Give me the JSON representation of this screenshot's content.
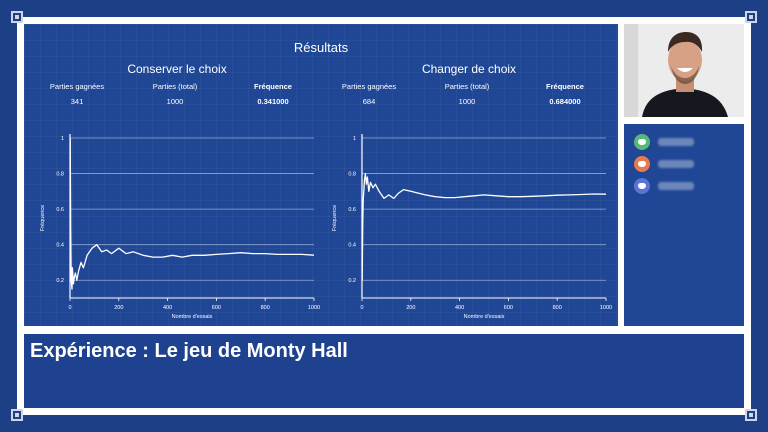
{
  "overlay": {
    "results_title": "Résultats",
    "caption": "Expérience : Le jeu de Monty Hall"
  },
  "colors": {
    "background": "#1d3f86",
    "screen": "#1f4796",
    "frame": "#ffffff",
    "avatar_1": "#57b87a",
    "avatar_2": "#e8794f",
    "avatar_3": "#5b73d6"
  },
  "participants": [
    {
      "icon": "discord-icon"
    },
    {
      "icon": "discord-icon"
    },
    {
      "icon": "discord-icon"
    }
  ],
  "panels": [
    {
      "title": "Conserver le choix",
      "stats": [
        {
          "label": "Parties gagnées",
          "value": "341"
        },
        {
          "label": "Parties (total)",
          "value": "1000"
        },
        {
          "label": "Fréquence",
          "value": "0.341000"
        }
      ]
    },
    {
      "title": "Changer de choix",
      "stats": [
        {
          "label": "Parties gagnées",
          "value": "684"
        },
        {
          "label": "Parties (total)",
          "value": "1000"
        },
        {
          "label": "Fréquence",
          "value": "0.684000"
        }
      ]
    }
  ],
  "chart_data": [
    {
      "type": "line",
      "title": "Conserver le choix",
      "xlabel": "Nombre d'essais",
      "ylabel": "Fréquence",
      "xlim": [
        0,
        1000
      ],
      "ylim": [
        0.1,
        1
      ],
      "xticks": [
        "0",
        "200",
        "400",
        "600",
        "800",
        "1000"
      ],
      "yticks": [
        "0.2",
        "0.4",
        "0.6",
        "0.8",
        "1"
      ],
      "grid": "horizontal",
      "series": [
        {
          "x": [
            1,
            3,
            5,
            8,
            10,
            14,
            18,
            22,
            28,
            35,
            45,
            55,
            70,
            90,
            110,
            130,
            150,
            170,
            200,
            230,
            260,
            300,
            340,
            380,
            420,
            460,
            500,
            550,
            600,
            650,
            700,
            750,
            800,
            850,
            900,
            950,
            1000
          ],
          "y": [
            1,
            0.5,
            0.2,
            0.15,
            0.27,
            0.18,
            0.22,
            0.24,
            0.2,
            0.25,
            0.3,
            0.27,
            0.34,
            0.38,
            0.4,
            0.36,
            0.37,
            0.35,
            0.38,
            0.35,
            0.36,
            0.34,
            0.33,
            0.33,
            0.34,
            0.33,
            0.34,
            0.34,
            0.345,
            0.35,
            0.355,
            0.35,
            0.35,
            0.345,
            0.345,
            0.345,
            0.341
          ]
        }
      ]
    },
    {
      "type": "line",
      "title": "Changer de choix",
      "xlabel": "Nombre d'essais",
      "ylabel": "Fréquence",
      "xlim": [
        0,
        1000
      ],
      "ylim": [
        0.1,
        1
      ],
      "xticks": [
        "0",
        "200",
        "400",
        "600",
        "800",
        "1000"
      ],
      "yticks": [
        "0.2",
        "0.4",
        "0.6",
        "0.8",
        "1"
      ],
      "grid": "horizontal",
      "series": [
        {
          "x": [
            1,
            3,
            5,
            8,
            10,
            14,
            18,
            22,
            28,
            35,
            45,
            55,
            70,
            90,
            110,
            130,
            150,
            170,
            200,
            230,
            260,
            300,
            340,
            380,
            420,
            460,
            500,
            550,
            600,
            650,
            700,
            750,
            800,
            850,
            900,
            950,
            1000
          ],
          "y": [
            0.2,
            0.5,
            0.65,
            0.72,
            0.76,
            0.8,
            0.74,
            0.78,
            0.7,
            0.75,
            0.72,
            0.74,
            0.7,
            0.66,
            0.68,
            0.66,
            0.69,
            0.71,
            0.7,
            0.69,
            0.68,
            0.67,
            0.665,
            0.665,
            0.67,
            0.675,
            0.68,
            0.675,
            0.67,
            0.67,
            0.672,
            0.675,
            0.678,
            0.68,
            0.682,
            0.685,
            0.684
          ]
        }
      ]
    }
  ]
}
